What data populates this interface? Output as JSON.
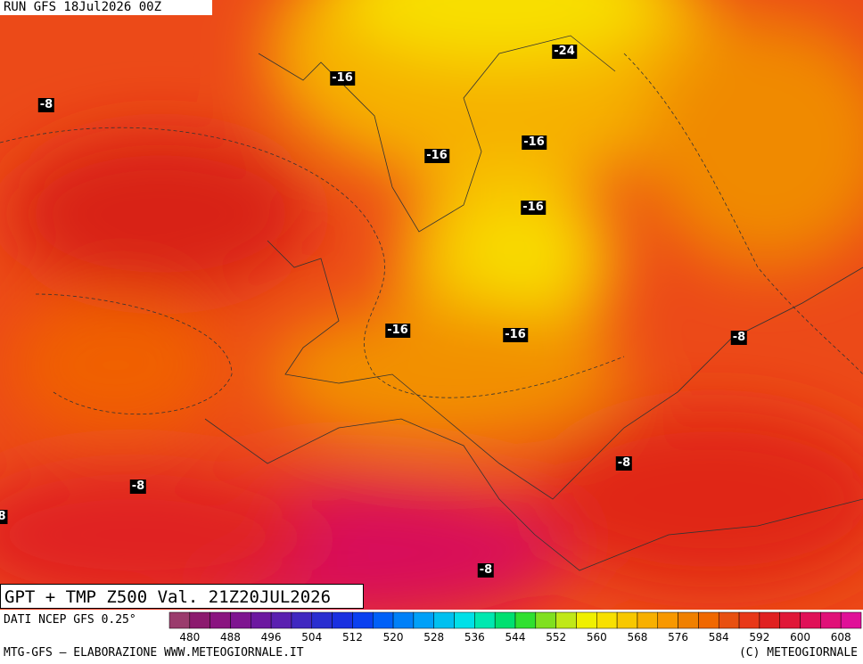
{
  "header": {
    "run": "RUN GFS 18Jul2026 00Z"
  },
  "map": {
    "labels": [
      "-24",
      "-16",
      "-8",
      "-16",
      "-16",
      "-16",
      "-16",
      "-16",
      "-8",
      "-8",
      "-8",
      "8",
      "-8"
    ]
  },
  "footer": {
    "title": "GPT + TMP Z500 Val. 21Z20JUL2026",
    "source": "DATI NCEP GFS 0.25°",
    "credit": "MTG-GFS – ELABORAZIONE WWW.METEOGIORNALE.IT",
    "copyright": "(C) METEOGIORNALE"
  },
  "colorbar": {
    "labels": [
      480,
      488,
      496,
      504,
      512,
      520,
      528,
      536,
      544,
      552,
      560,
      568,
      576,
      584,
      592,
      600,
      608
    ],
    "colors": [
      "#9a3c6c",
      "#8c1a6e",
      "#8a1480",
      "#7e1490",
      "#6c18a0",
      "#5a20b0",
      "#4028c0",
      "#2a2ed0",
      "#1a30e0",
      "#0a40f0",
      "#0060f8",
      "#0080f8",
      "#00a0f8",
      "#00c0f0",
      "#00e0e8",
      "#00e8b0",
      "#00e070",
      "#30e030",
      "#80e020",
      "#c0e818",
      "#f0f000",
      "#f8e000",
      "#f8c800",
      "#f8b000",
      "#f89800",
      "#f08000",
      "#f06800",
      "#e85010",
      "#e83818",
      "#e02020",
      "#e01838",
      "#e01058",
      "#e01078",
      "#e01098"
    ]
  }
}
